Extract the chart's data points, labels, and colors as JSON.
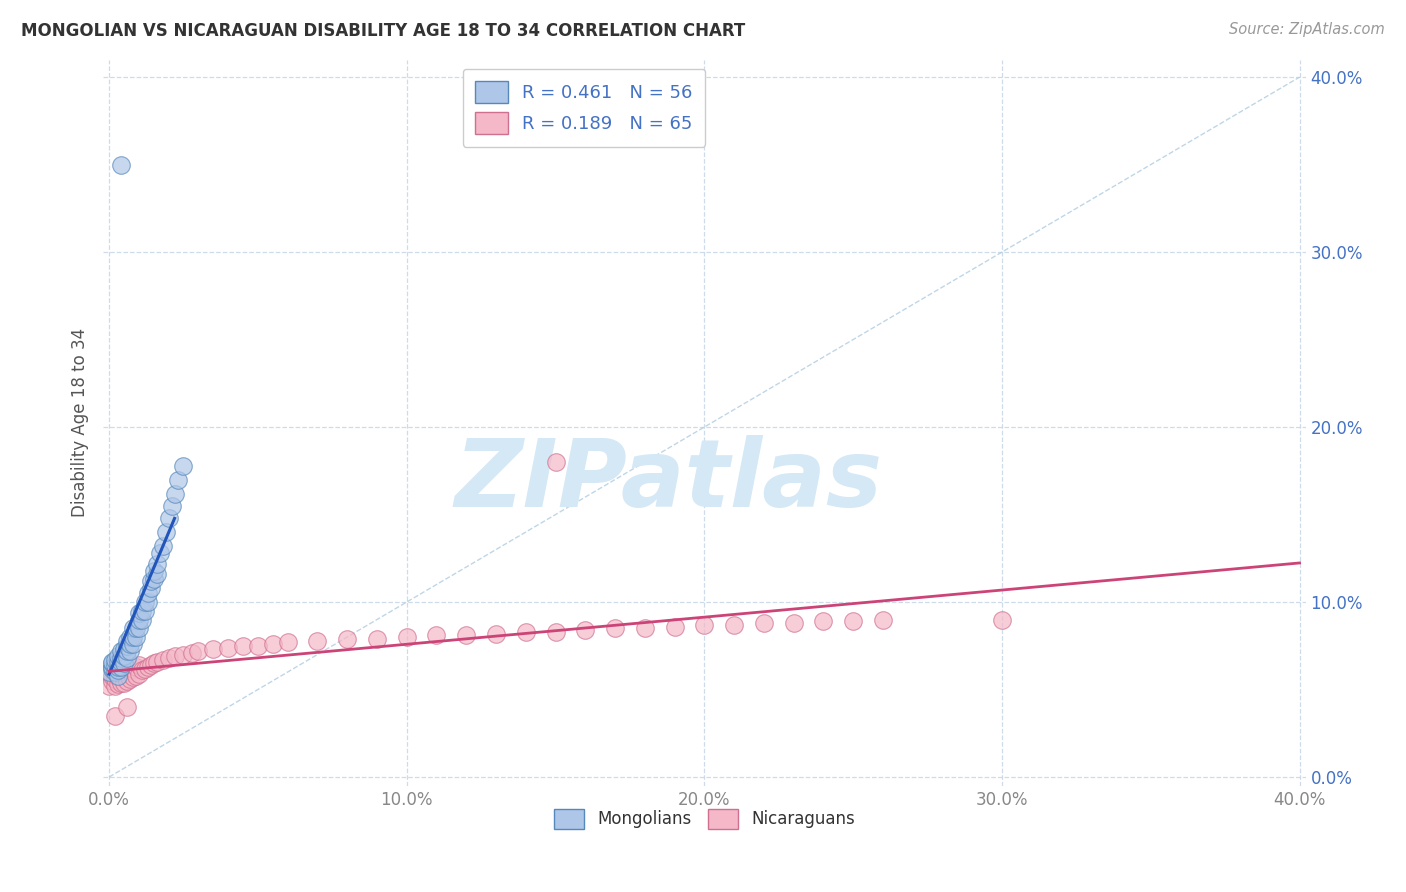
{
  "title": "MONGOLIAN VS NICARAGUAN DISABILITY AGE 18 TO 34 CORRELATION CHART",
  "source": "Source: ZipAtlas.com",
  "ylabel": "Disability Age 18 to 34",
  "xlabel": "",
  "xlim": [
    -0.002,
    0.402
  ],
  "ylim": [
    -0.005,
    0.41
  ],
  "xtick_vals": [
    0.0,
    0.1,
    0.2,
    0.3,
    0.4
  ],
  "ytick_vals": [
    0.0,
    0.1,
    0.2,
    0.3,
    0.4
  ],
  "xtick_labels": [
    "0.0%",
    "10.0%",
    "20.0%",
    "30.0%",
    "40.0%"
  ],
  "ytick_labels": [
    "0.0%",
    "10.0%",
    "20.0%",
    "30.0%",
    "40.0%"
  ],
  "mongolian_color": "#aec6e8",
  "nicaraguan_color": "#f4b8c8",
  "mongolian_edge": "#5588bb",
  "nicaraguan_edge": "#d07090",
  "mongolian_R": 0.461,
  "mongolian_N": 56,
  "nicaraguan_R": 0.189,
  "nicaraguan_N": 65,
  "trend_mongolian_color": "#2255bb",
  "trend_nicaraguan_color": "#cc4477",
  "watermark": "ZIPatlas",
  "watermark_color": "#d5e8f5",
  "legend_mongolian": "Mongolians",
  "legend_nicaraguan": "Nicaraguans",
  "mongolian_x": [
    0.0,
    0.001,
    0.001,
    0.001,
    0.001,
    0.002,
    0.002,
    0.002,
    0.003,
    0.003,
    0.003,
    0.003,
    0.003,
    0.004,
    0.004,
    0.004,
    0.004,
    0.005,
    0.005,
    0.005,
    0.006,
    0.006,
    0.006,
    0.006,
    0.007,
    0.007,
    0.007,
    0.008,
    0.008,
    0.008,
    0.009,
    0.009,
    0.01,
    0.01,
    0.01,
    0.011,
    0.011,
    0.012,
    0.012,
    0.013,
    0.013,
    0.014,
    0.014,
    0.015,
    0.015,
    0.016,
    0.016,
    0.017,
    0.018,
    0.019,
    0.02,
    0.021,
    0.022,
    0.004,
    0.023,
    0.025
  ],
  "mongolian_y": [
    0.06,
    0.062,
    0.063,
    0.065,
    0.066,
    0.06,
    0.064,
    0.067,
    0.058,
    0.061,
    0.063,
    0.066,
    0.069,
    0.063,
    0.066,
    0.068,
    0.072,
    0.065,
    0.069,
    0.073,
    0.068,
    0.072,
    0.075,
    0.078,
    0.072,
    0.076,
    0.08,
    0.076,
    0.08,
    0.085,
    0.08,
    0.085,
    0.085,
    0.09,
    0.094,
    0.09,
    0.095,
    0.095,
    0.1,
    0.1,
    0.105,
    0.108,
    0.112,
    0.113,
    0.118,
    0.116,
    0.122,
    0.128,
    0.132,
    0.14,
    0.148,
    0.155,
    0.162,
    0.35,
    0.17,
    0.178
  ],
  "nicaraguan_x": [
    0.0,
    0.001,
    0.001,
    0.002,
    0.002,
    0.003,
    0.003,
    0.003,
    0.004,
    0.004,
    0.005,
    0.005,
    0.005,
    0.006,
    0.006,
    0.007,
    0.007,
    0.008,
    0.008,
    0.009,
    0.009,
    0.01,
    0.01,
    0.011,
    0.012,
    0.013,
    0.014,
    0.015,
    0.016,
    0.018,
    0.02,
    0.022,
    0.025,
    0.028,
    0.03,
    0.035,
    0.04,
    0.045,
    0.05,
    0.055,
    0.06,
    0.07,
    0.08,
    0.09,
    0.1,
    0.11,
    0.12,
    0.13,
    0.14,
    0.15,
    0.16,
    0.17,
    0.18,
    0.19,
    0.2,
    0.21,
    0.22,
    0.23,
    0.24,
    0.25,
    0.26,
    0.3,
    0.002,
    0.006,
    0.15
  ],
  "nicaraguan_y": [
    0.052,
    0.055,
    0.058,
    0.052,
    0.056,
    0.053,
    0.057,
    0.061,
    0.054,
    0.059,
    0.054,
    0.059,
    0.063,
    0.055,
    0.06,
    0.056,
    0.061,
    0.057,
    0.062,
    0.058,
    0.063,
    0.059,
    0.064,
    0.061,
    0.062,
    0.063,
    0.064,
    0.065,
    0.066,
    0.067,
    0.068,
    0.069,
    0.07,
    0.071,
    0.072,
    0.073,
    0.074,
    0.075,
    0.075,
    0.076,
    0.077,
    0.078,
    0.079,
    0.079,
    0.08,
    0.081,
    0.081,
    0.082,
    0.083,
    0.083,
    0.084,
    0.085,
    0.085,
    0.086,
    0.087,
    0.087,
    0.088,
    0.088,
    0.089,
    0.089,
    0.09,
    0.09,
    0.035,
    0.04,
    0.18
  ],
  "grid_color": "#c8d8e8",
  "background_color": "#ffffff",
  "mon_trend_x": [
    0.0,
    0.022
  ],
  "nic_trend_x": [
    0.0,
    0.4
  ]
}
